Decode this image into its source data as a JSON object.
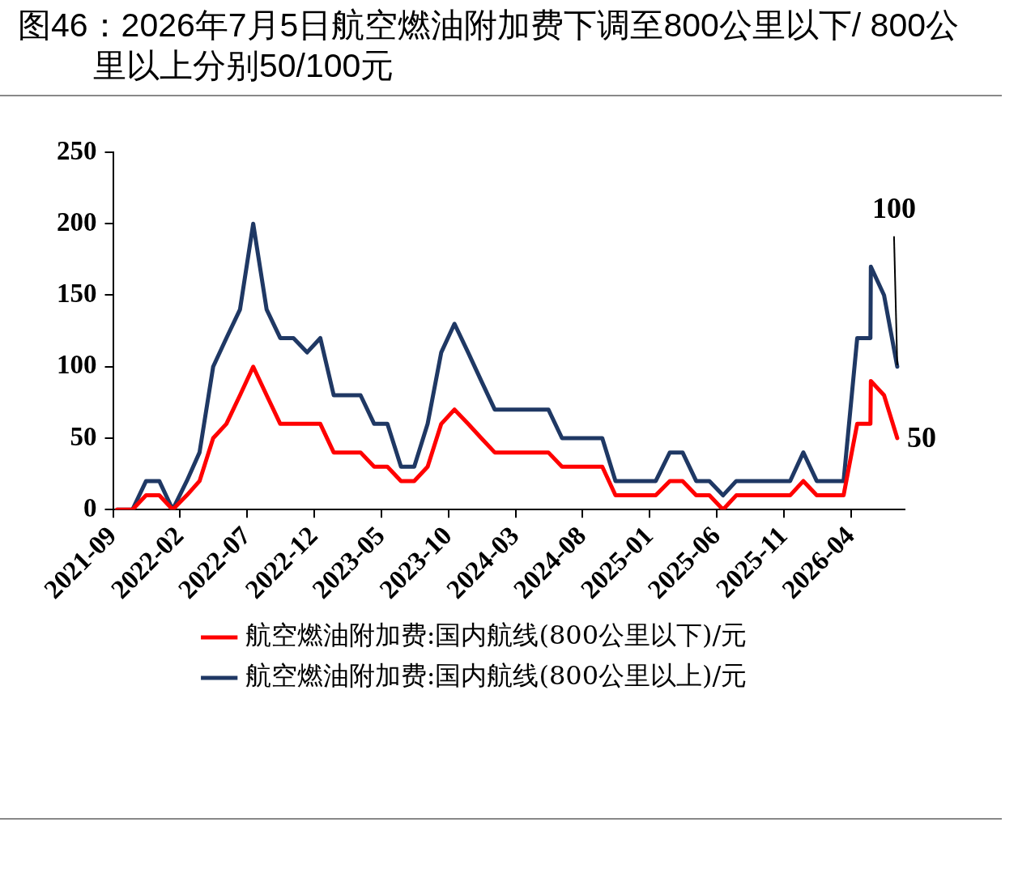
{
  "chart_data": {
    "type": "line",
    "title": "图46：2026年7月5日航空燃油附加费下调至800公里以下/ 800公里以上分别50/100元",
    "x": [
      "2021-09-10",
      "2021-10-15",
      "2021-11-15",
      "2021-12-15",
      "2022-01-15",
      "2022-02-15",
      "2022-03-15",
      "2022-04-15",
      "2022-05-15",
      "2022-06-15",
      "2022-07-15",
      "2022-08-15",
      "2022-09-15",
      "2022-10-15",
      "2022-11-15",
      "2022-12-15",
      "2023-01-15",
      "2023-02-15",
      "2023-03-15",
      "2023-04-15",
      "2023-05-15",
      "2023-06-15",
      "2023-07-15",
      "2023-08-15",
      "2023-09-15",
      "2023-10-15",
      "2023-11-15",
      "2023-12-15",
      "2024-01-15",
      "2024-02-15",
      "2024-03-15",
      "2024-04-15",
      "2024-05-15",
      "2024-06-15",
      "2024-07-15",
      "2024-08-15",
      "2024-09-15",
      "2024-10-15",
      "2024-11-15",
      "2024-12-15",
      "2025-01-15",
      "2025-02-15",
      "2025-03-15",
      "2025-04-15",
      "2025-05-15",
      "2025-06-15",
      "2025-07-15",
      "2025-08-15",
      "2025-09-15",
      "2025-10-15",
      "2025-11-15",
      "2025-12-15",
      "2026-01-15",
      "2026-02-15",
      "2026-03-15",
      "2026-04-15",
      "2026-05-15",
      "2026-05-16",
      "2026-06-15",
      "2026-07-15"
    ],
    "series": [
      {
        "name": "航空燃油附加费:国内航线(800公里以下)/元",
        "color": "#ff0000",
        "values": [
          0,
          0,
          10,
          10,
          0,
          10,
          20,
          50,
          60,
          80,
          100,
          80,
          60,
          60,
          60,
          60,
          40,
          40,
          40,
          30,
          30,
          20,
          20,
          30,
          60,
          70,
          60,
          50,
          40,
          40,
          40,
          40,
          40,
          30,
          30,
          30,
          30,
          10,
          10,
          10,
          10,
          20,
          20,
          10,
          10,
          0,
          10,
          10,
          10,
          10,
          10,
          20,
          10,
          10,
          10,
          60,
          60,
          90,
          80,
          50
        ]
      },
      {
        "name": "航空燃油附加费:国内航线(800公里以上)/元",
        "color": "#1f3864",
        "values": [
          0,
          0,
          20,
          20,
          0,
          20,
          40,
          100,
          120,
          140,
          200,
          140,
          120,
          120,
          110,
          120,
          80,
          80,
          80,
          60,
          60,
          30,
          30,
          60,
          110,
          130,
          110,
          90,
          70,
          70,
          70,
          70,
          70,
          50,
          50,
          50,
          50,
          20,
          20,
          20,
          20,
          40,
          40,
          20,
          20,
          10,
          20,
          20,
          20,
          20,
          20,
          40,
          20,
          20,
          20,
          120,
          120,
          170,
          150,
          100
        ]
      }
    ],
    "xlim": [
      "2021-09-01",
      "2026-08-01"
    ],
    "xticks": [
      "2021-09",
      "2022-02",
      "2022-07",
      "2022-12",
      "2023-05",
      "2023-10",
      "2024-03",
      "2024-08",
      "2025-01",
      "2025-06",
      "2025-11",
      "2026-04"
    ],
    "ylim": [
      0,
      250
    ],
    "yticks": [
      0,
      50,
      100,
      150,
      200,
      250
    ],
    "annotations": [
      {
        "text": "100",
        "x": "2026-07-15",
        "y": 100
      },
      {
        "text": "50",
        "x": "2026-07-15",
        "y": 50
      }
    ],
    "grid": false,
    "legend": "bottom",
    "marker": "none",
    "line_style": "solid"
  }
}
